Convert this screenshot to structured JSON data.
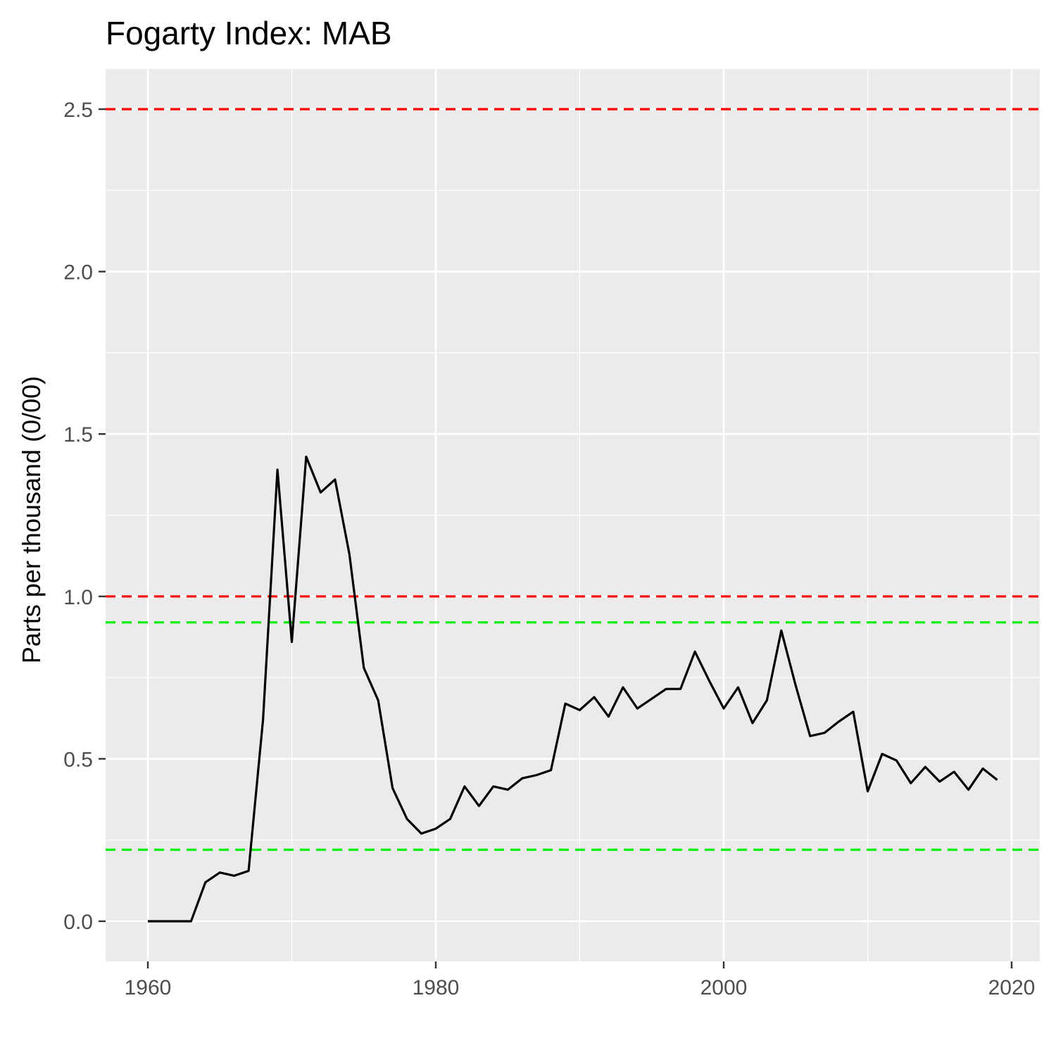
{
  "chart_data": {
    "type": "line",
    "title": "Fogarty Index: MAB",
    "xlabel": "",
    "ylabel": "Parts per thousand (0/00)",
    "xlim": [
      1957.1,
      1962.0
    ],
    "ylim": [
      -0.13,
      2.63
    ],
    "x_ticks": [
      1960,
      1980,
      2000,
      2020
    ],
    "x_tick_labels": [
      "1960",
      "1980",
      "2000",
      "2020"
    ],
    "y_ticks": [
      0.0,
      0.5,
      1.0,
      1.5,
      2.0,
      2.5
    ],
    "y_tick_labels": [
      "0.0",
      "0.5",
      "1.0",
      "1.5",
      "2.0",
      "2.5"
    ],
    "grid": true,
    "background": "#ebebeb",
    "series": [
      {
        "color": "#000000",
        "x": [
          1960,
          1961,
          1962,
          1963,
          1964,
          1965,
          1966,
          1967,
          1968,
          1969,
          1970,
          1971,
          1972,
          1973,
          1974,
          1975,
          1976,
          1977,
          1978,
          1979,
          1980,
          1981,
          1982,
          1983,
          1984,
          1985,
          1986,
          1987,
          1988,
          1989,
          1990,
          1991,
          1992,
          1993,
          1994,
          1995,
          1996,
          1997,
          1998,
          1999,
          2000,
          2001,
          2002,
          2003,
          2004,
          2005,
          2006,
          2007,
          2008,
          2009,
          2010,
          2011,
          2012,
          2013,
          2014,
          2015,
          2016,
          2017,
          2018,
          2019
        ],
        "y": [
          0.0,
          0.0,
          0.0,
          0.0,
          0.12,
          0.15,
          0.14,
          0.155,
          0.62,
          1.39,
          0.86,
          1.43,
          1.32,
          1.36,
          1.13,
          0.78,
          0.68,
          0.41,
          0.315,
          0.27,
          0.285,
          0.315,
          0.415,
          0.355,
          0.415,
          0.405,
          0.44,
          0.45,
          0.465,
          0.67,
          0.65,
          0.69,
          0.63,
          0.72,
          0.655,
          0.685,
          0.715,
          0.715,
          0.83,
          0.74,
          0.655,
          0.72,
          0.61,
          0.68,
          0.895,
          0.725,
          0.57,
          0.58,
          0.615,
          0.645,
          0.4,
          0.515,
          0.495,
          0.425,
          0.475,
          0.43,
          0.46,
          0.405,
          0.47,
          0.435
        ]
      }
    ],
    "reference_lines": [
      {
        "y": 2.5,
        "color": "#ff0000",
        "style": "dashed"
      },
      {
        "y": 1.0,
        "color": "#ff0000",
        "style": "dashed"
      },
      {
        "y": 0.92,
        "color": "#00ee00",
        "style": "dashed"
      },
      {
        "y": 0.22,
        "color": "#00ee00",
        "style": "dashed"
      }
    ]
  }
}
